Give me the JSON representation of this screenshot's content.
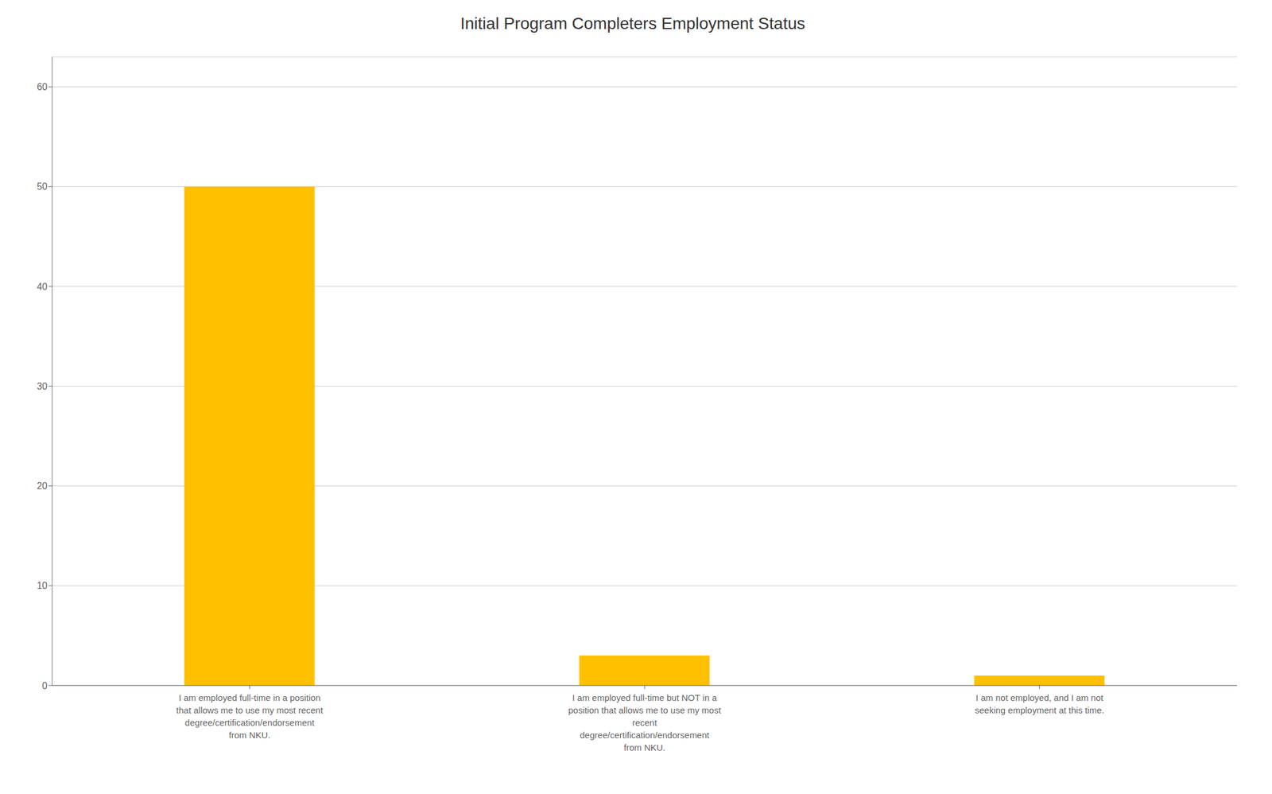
{
  "chart_data": {
    "type": "bar",
    "title": "Initial Program Completers Employment Status",
    "categories": [
      "I am employed full-time in a position\nthat allows me to use my most recent\ndegree/certification/endorsement\nfrom NKU.",
      "I am employed full-time but NOT in a\nposition that allows me to use my most\nrecent\ndegree/certification/endorsement\nfrom NKU.",
      "I am not employed, and I am not\nseeking employment at this time."
    ],
    "values": [
      50,
      3,
      1
    ],
    "color": "#FFC000",
    "ylim": [
      0,
      63
    ],
    "yticks": [
      0,
      10,
      20,
      30,
      40,
      50,
      60
    ],
    "grid": true
  }
}
